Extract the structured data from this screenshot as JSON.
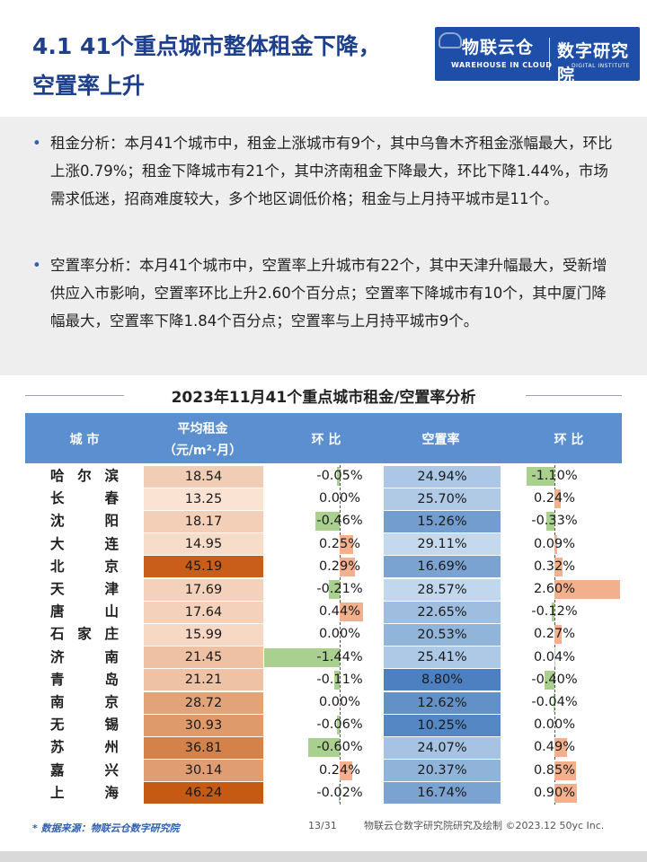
{
  "header": {
    "title_line1": "4.1 41个重点城市整体租金下降，",
    "title_line2": "空置率上升",
    "logo_left": "物联云仓",
    "logo_left_sub": "WAREHOUSE IN CLOUD",
    "logo_right": "数字研究院",
    "logo_right_sub": "DIGITAL INSTITUTE"
  },
  "analysis": {
    "bullet1": "租金分析：本月41个城市中，租金上涨城市有9个，其中乌鲁木齐租金涨幅最大，环比上涨0.79%；租金下降城市有21个，其中济南租金下降最大，环比下降1.44%，市场需求低迷，招商难度较大，多个地区调低价格；租金与上月持平城市是11个。",
    "bullet2": "空置率分析：本月41个城市中，空置率上升城市有22个，其中天津升幅最大，受新增供应入市影响，空置率环比上升2.60个百分点；空置率下降城市有10个，其中厦门降幅最大，空置率下降1.84个百分点；空置率与上月持平城市9个。"
  },
  "chart_data": {
    "type": "table",
    "title": "2023年11月41个重点城市租金/空置率分析",
    "columns": [
      "城 市",
      "平均租金（元/m²·月）",
      "环 比",
      "空置率",
      "环 比"
    ],
    "rows": [
      {
        "city": "哈尔滨",
        "rent": 18.54,
        "rent_mom": -0.05,
        "vacancy": 24.94,
        "vac_mom": -1.1
      },
      {
        "city": "长春",
        "rent": 13.25,
        "rent_mom": 0.0,
        "vacancy": 25.7,
        "vac_mom": 0.24
      },
      {
        "city": "沈阳",
        "rent": 18.17,
        "rent_mom": -0.46,
        "vacancy": 15.26,
        "vac_mom": -0.33
      },
      {
        "city": "大连",
        "rent": 14.95,
        "rent_mom": 0.25,
        "vacancy": 29.11,
        "vac_mom": 0.09
      },
      {
        "city": "北京",
        "rent": 45.19,
        "rent_mom": 0.29,
        "vacancy": 16.69,
        "vac_mom": 0.32
      },
      {
        "city": "天津",
        "rent": 17.69,
        "rent_mom": -0.21,
        "vacancy": 28.57,
        "vac_mom": 2.6
      },
      {
        "city": "唐山",
        "rent": 17.64,
        "rent_mom": 0.44,
        "vacancy": 22.65,
        "vac_mom": -0.12
      },
      {
        "city": "石家庄",
        "rent": 15.99,
        "rent_mom": 0.0,
        "vacancy": 20.53,
        "vac_mom": 0.27
      },
      {
        "city": "济南",
        "rent": 21.45,
        "rent_mom": -1.44,
        "vacancy": 25.41,
        "vac_mom": 0.04
      },
      {
        "city": "青岛",
        "rent": 21.21,
        "rent_mom": -0.11,
        "vacancy": 8.8,
        "vac_mom": -0.4
      },
      {
        "city": "南京",
        "rent": 28.72,
        "rent_mom": 0.0,
        "vacancy": 12.62,
        "vac_mom": -0.04
      },
      {
        "city": "无锡",
        "rent": 30.93,
        "rent_mom": -0.06,
        "vacancy": 10.25,
        "vac_mom": 0.0
      },
      {
        "city": "苏州",
        "rent": 36.81,
        "rent_mom": -0.6,
        "vacancy": 24.07,
        "vac_mom": 0.49
      },
      {
        "city": "嘉兴",
        "rent": 30.14,
        "rent_mom": 0.24,
        "vacancy": 20.37,
        "vac_mom": 0.85
      },
      {
        "city": "上海",
        "rent": 46.24,
        "rent_mom": -0.02,
        "vacancy": 16.74,
        "vac_mom": 0.9
      }
    ]
  },
  "table_header": {
    "city": "城 市",
    "rent_line1": "平均租金",
    "rent_line2": "（元/m²·月）",
    "mom": "环 比",
    "vacancy": "空置率",
    "mom2": "环 比"
  },
  "footer": {
    "source": "* 数据来源：物联云仓数字研究院",
    "page": "13/31",
    "credit": "物联云仓数字研究院研究及绘制 ©2023.12 50yc Inc."
  },
  "colors": {
    "title": "#1e3f8c",
    "header_bg": "#5b8fd0",
    "rent_low": "#fbe4d5",
    "rent_high": "#c65911",
    "vac_low": "#c6dbef",
    "vac_high": "#4a7fbf",
    "bar_pos": "#f3b08c",
    "bar_neg": "#a9d08e"
  }
}
